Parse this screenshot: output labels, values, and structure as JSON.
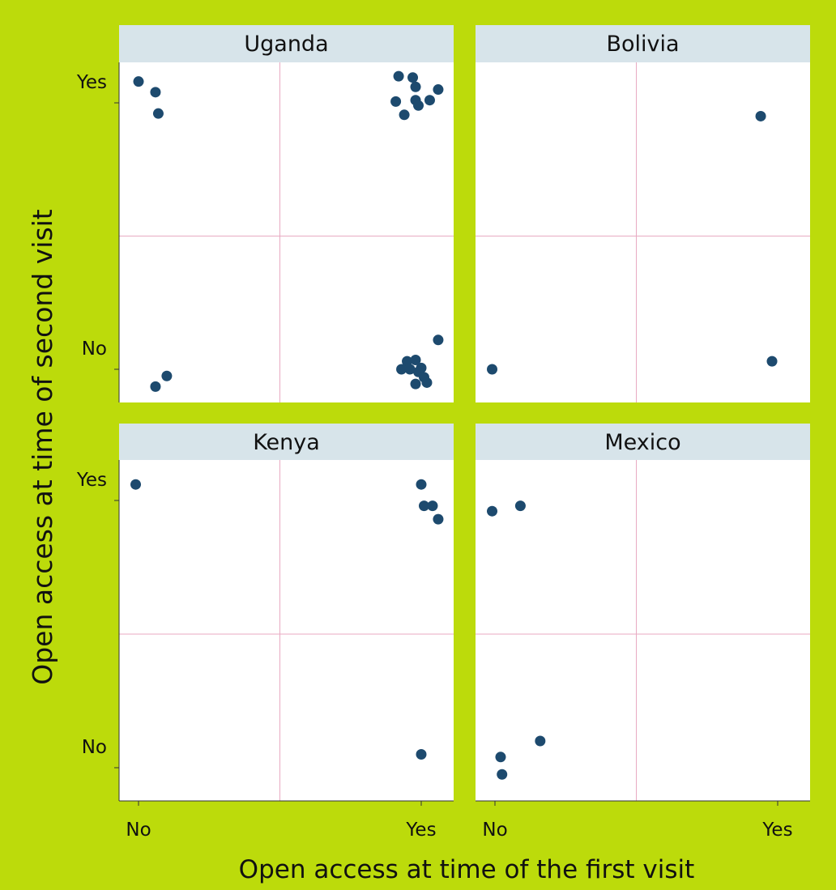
{
  "chart_data": {
    "type": "scatter",
    "xlabel": "Open access at time of the first visit",
    "ylabel": "Open access at time of second visit",
    "x_tick_labels": [
      "No",
      "Yes"
    ],
    "y_tick_labels": [
      "No",
      "Yes"
    ],
    "xlim": [
      -0.07,
      1.12
    ],
    "ylim": [
      -0.12,
      1.08
    ],
    "grid": true,
    "colors": {
      "background": "#bcdb0b",
      "panel": "#ffffff",
      "strip": "#d7e4ea",
      "point": "#1d4a6e",
      "gridline": "#e8aac2"
    },
    "panels": [
      {
        "title": "Uganda",
        "points": [
          {
            "x": 0.0,
            "y": 1.08
          },
          {
            "x": 0.06,
            "y": 1.04
          },
          {
            "x": 0.07,
            "y": 0.96
          },
          {
            "x": 0.92,
            "y": 1.1
          },
          {
            "x": 0.97,
            "y": 1.095
          },
          {
            "x": 0.98,
            "y": 1.06
          },
          {
            "x": 1.06,
            "y": 1.05
          },
          {
            "x": 0.91,
            "y": 1.005
          },
          {
            "x": 0.98,
            "y": 1.01
          },
          {
            "x": 1.03,
            "y": 1.01
          },
          {
            "x": 0.99,
            "y": 0.99
          },
          {
            "x": 0.94,
            "y": 0.955
          },
          {
            "x": 1.06,
            "y": 0.11
          },
          {
            "x": 0.95,
            "y": 0.03
          },
          {
            "x": 0.98,
            "y": 0.035
          },
          {
            "x": 0.93,
            "y": 0.0
          },
          {
            "x": 0.96,
            "y": 0.0
          },
          {
            "x": 1.0,
            "y": 0.005
          },
          {
            "x": 0.99,
            "y": -0.01
          },
          {
            "x": 1.01,
            "y": -0.03
          },
          {
            "x": 0.98,
            "y": -0.055
          },
          {
            "x": 1.02,
            "y": -0.05
          },
          {
            "x": 0.1,
            "y": -0.025
          },
          {
            "x": 0.06,
            "y": -0.065
          }
        ]
      },
      {
        "title": "Bolivia",
        "points": [
          {
            "x": 0.94,
            "y": 0.95
          },
          {
            "x": -0.01,
            "y": 0.0
          },
          {
            "x": 0.98,
            "y": 0.03
          }
        ]
      },
      {
        "title": "Kenya",
        "points": [
          {
            "x": -0.01,
            "y": 1.06
          },
          {
            "x": 1.0,
            "y": 1.06
          },
          {
            "x": 1.01,
            "y": 0.98
          },
          {
            "x": 1.04,
            "y": 0.98
          },
          {
            "x": 1.06,
            "y": 0.93
          },
          {
            "x": 1.0,
            "y": 0.05
          }
        ]
      },
      {
        "title": "Mexico",
        "points": [
          {
            "x": -0.01,
            "y": 0.96
          },
          {
            "x": 0.09,
            "y": 0.98
          },
          {
            "x": 0.16,
            "y": 0.1
          },
          {
            "x": 0.02,
            "y": 0.04
          },
          {
            "x": 0.025,
            "y": -0.025
          }
        ]
      }
    ]
  }
}
